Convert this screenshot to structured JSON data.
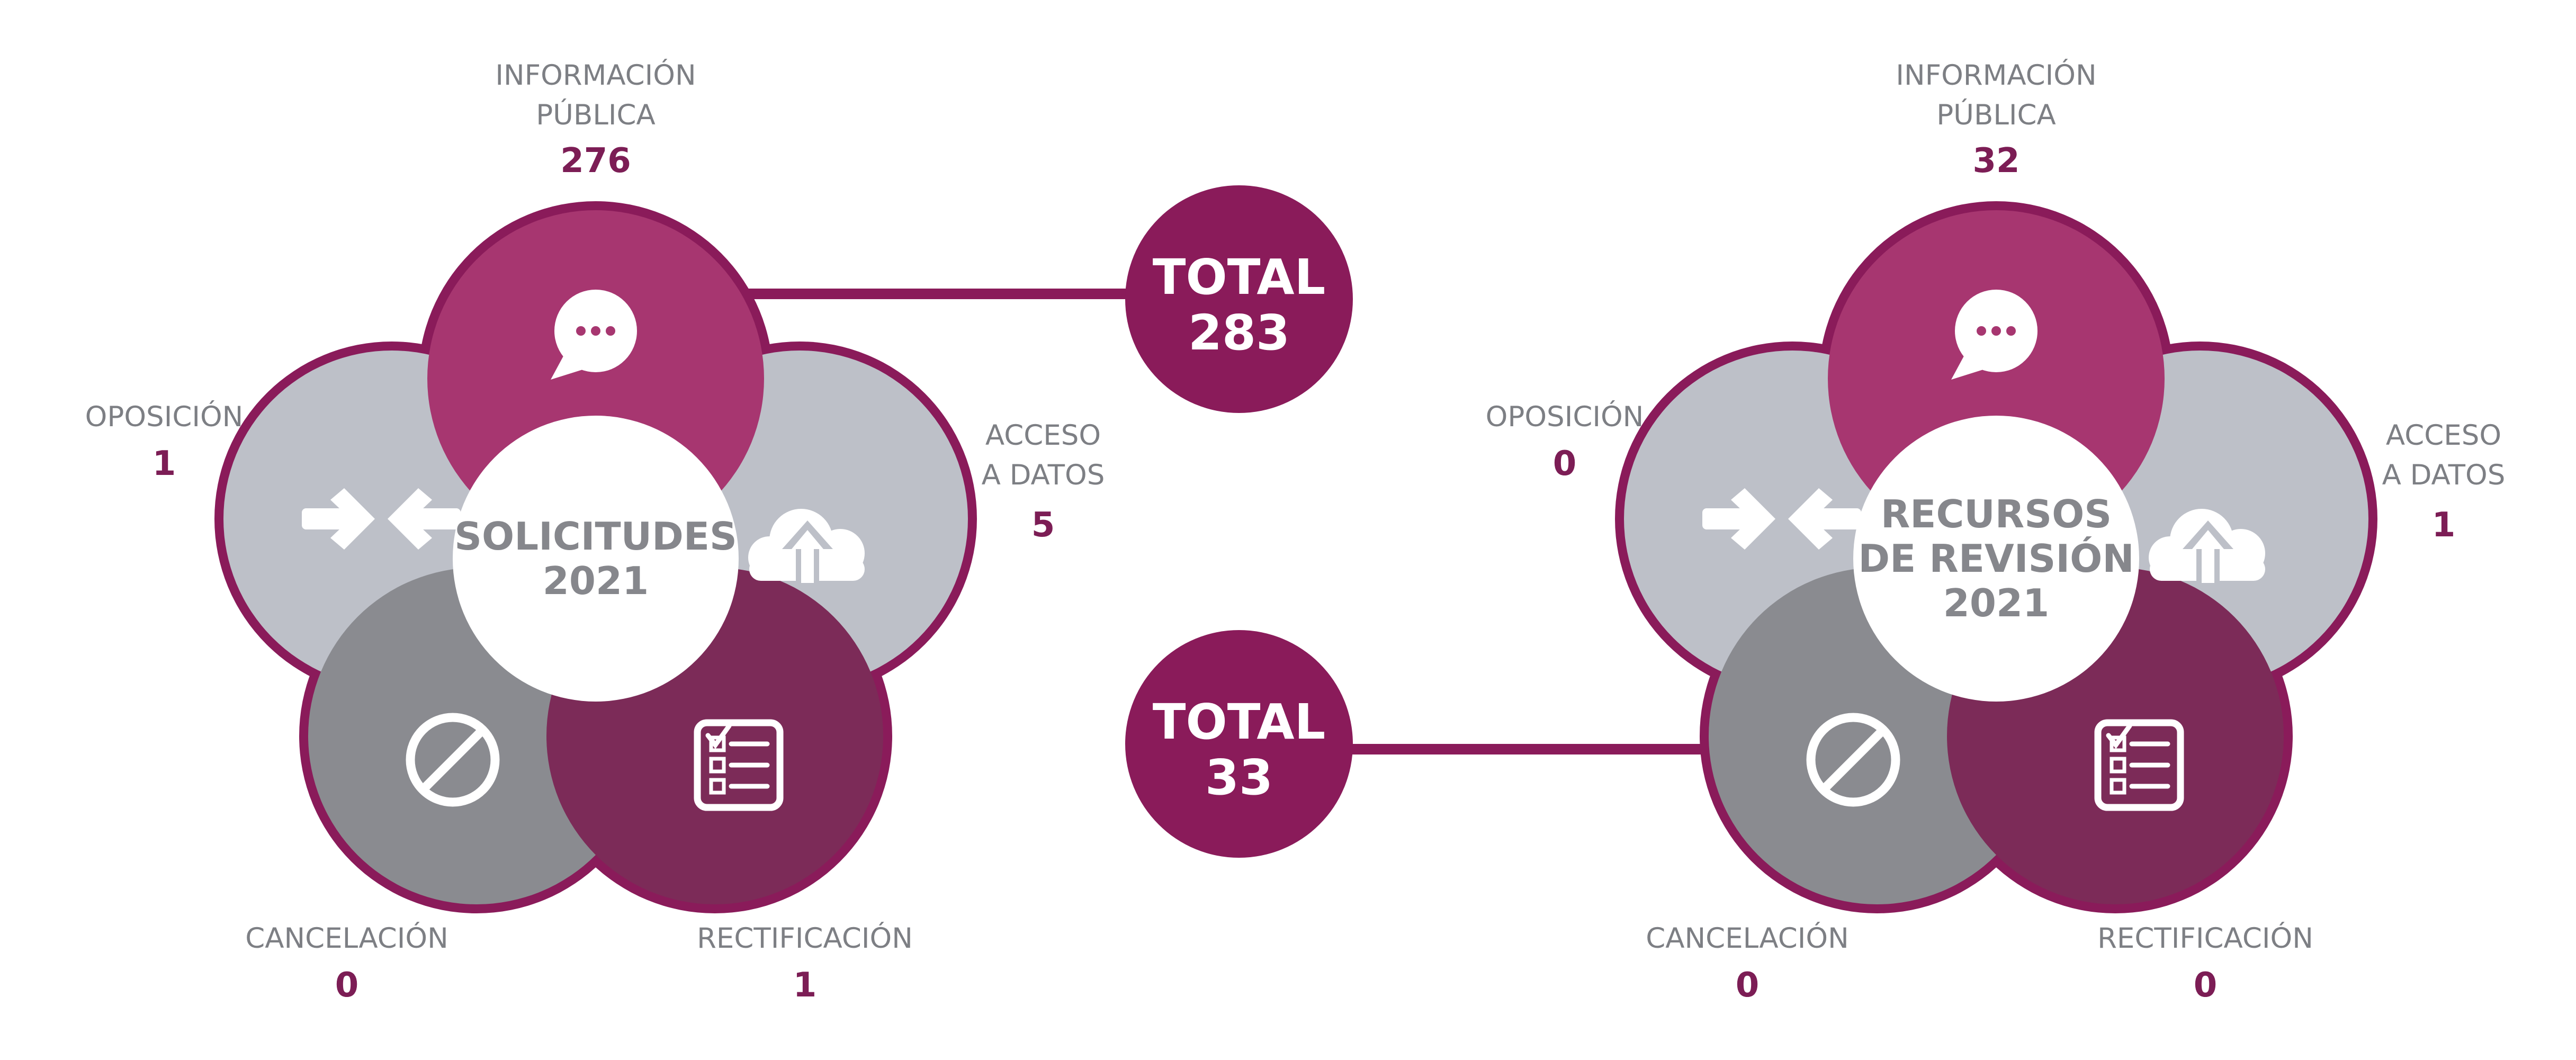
{
  "colors": {
    "magenta_light": "#a73670",
    "magenta_dark": "#7c2b58",
    "ring": "#8a1b5a",
    "silver": "#bdc0c8",
    "gray": "#8a8b90",
    "total_bubble": "#8a1b5a",
    "label_text": "#7d7f84",
    "value_text": "#7c1d55"
  },
  "diagrams": [
    {
      "center_lines": [
        "SOLICITUDES",
        "2021"
      ],
      "segments": {
        "informacion": {
          "label_lines": [
            "INFORMACIÓN",
            "PÚBLICA"
          ],
          "value": "276",
          "icon": "speech-bubble-icon"
        },
        "acceso": {
          "label_lines": [
            "ACCESO",
            "A DATOS"
          ],
          "value": "5",
          "icon": "cloud-upload-icon"
        },
        "rectificacion": {
          "label_lines": [
            "RECTIFICACIÓN"
          ],
          "value": "1",
          "icon": "checklist-icon"
        },
        "cancelacion": {
          "label_lines": [
            "CANCELACIÓN"
          ],
          "value": "0",
          "icon": "prohibited-icon"
        },
        "oposicion": {
          "label_lines": [
            "OPOSICIÓN"
          ],
          "value": "1",
          "icon": "opposing-arrows-icon"
        }
      },
      "total_lines": [
        "TOTAL",
        "283"
      ]
    },
    {
      "center_lines": [
        "RECURSOS",
        "DE REVISIÓN",
        "2021"
      ],
      "segments": {
        "informacion": {
          "label_lines": [
            "INFORMACIÓN",
            "PÚBLICA"
          ],
          "value": "32",
          "icon": "speech-bubble-icon"
        },
        "acceso": {
          "label_lines": [
            "ACCESO",
            "A DATOS"
          ],
          "value": "1",
          "icon": "cloud-upload-icon"
        },
        "rectificacion": {
          "label_lines": [
            "RECTIFICACIÓN"
          ],
          "value": "0",
          "icon": "checklist-icon"
        },
        "cancelacion": {
          "label_lines": [
            "CANCELACIÓN"
          ],
          "value": "0",
          "icon": "prohibited-icon"
        },
        "oposicion": {
          "label_lines": [
            "OPOSICIÓN"
          ],
          "value": "0",
          "icon": "opposing-arrows-icon"
        }
      },
      "total_lines": [
        "TOTAL",
        "33"
      ]
    }
  ]
}
